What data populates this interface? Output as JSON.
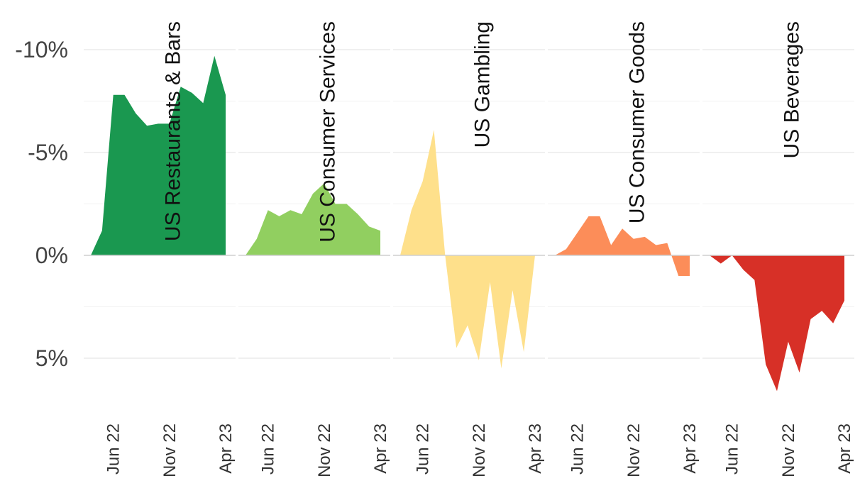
{
  "chart_data": {
    "type": "area",
    "y_axis": {
      "reversed": true,
      "lim": [
        -10,
        5
      ],
      "ticks": [
        {
          "value": -10,
          "label": "-10%"
        },
        {
          "value": -5,
          "label": "-5%"
        },
        {
          "value": 0,
          "label": "0%"
        },
        {
          "value": 5,
          "label": "5%"
        }
      ]
    },
    "x_ticks": [
      {
        "index": 2,
        "label": "Jun 22"
      },
      {
        "index": 7,
        "label": "Nov 22"
      },
      {
        "index": 12,
        "label": "Apr 23"
      }
    ],
    "grid": true,
    "panels": [
      {
        "title": "US Restaurants & Bars",
        "color": "#1a9850",
        "values": [
          0.0,
          -1.2,
          -7.8,
          -7.8,
          -6.9,
          -6.3,
          -6.4,
          -6.4,
          -8.2,
          -7.9,
          -7.4,
          -9.7,
          -7.8
        ]
      },
      {
        "title": "US Consumer Services",
        "color": "#91cf60",
        "values": [
          0.0,
          -0.8,
          -2.2,
          -1.9,
          -2.2,
          -2.0,
          -3.0,
          -3.5,
          -2.5,
          -2.5,
          -2.0,
          -1.4,
          -1.2
        ]
      },
      {
        "title": "US Gambling",
        "color": "#fee08b",
        "values": [
          0.0,
          -2.2,
          -3.6,
          -6.1,
          0.0,
          4.5,
          3.4,
          5.1,
          1.3,
          5.5,
          1.7,
          4.7,
          0.0
        ]
      },
      {
        "title": "US Consumer Goods",
        "color": "#fc8d59",
        "values": [
          0.0,
          -0.3,
          -1.1,
          -1.9,
          -1.9,
          -0.5,
          -1.3,
          -0.8,
          -0.9,
          -0.5,
          -0.6,
          1.0,
          1.0
        ]
      },
      {
        "title": "US Beverages",
        "color": "#d73027",
        "values": [
          0.0,
          0.4,
          0.0,
          0.7,
          1.2,
          5.3,
          6.6,
          4.2,
          5.7,
          3.1,
          2.7,
          3.3,
          2.2
        ]
      }
    ]
  }
}
